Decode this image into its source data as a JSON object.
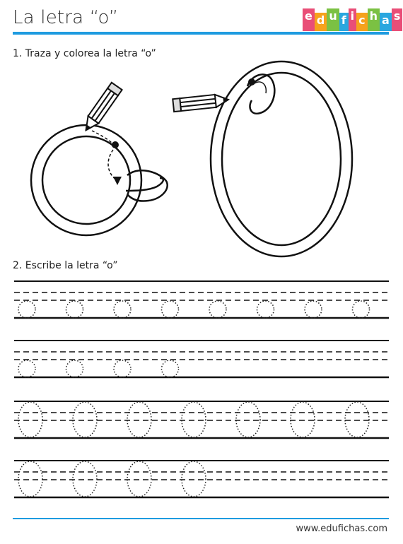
{
  "header": {
    "title": "La letra “o”",
    "accent_color": "#1e9be0",
    "logo": {
      "letters": [
        "e",
        "d",
        "u",
        "f",
        "i",
        "c",
        "h",
        "a",
        "s"
      ],
      "colors": [
        "#e94e77",
        "#f6a21c",
        "#7bc143",
        "#2aa7df",
        "#e94e77",
        "#f6a21c",
        "#7bc143",
        "#2aa7df",
        "#e94e77"
      ]
    }
  },
  "sections": {
    "trace": "1. Traza y colorea la letra “o”",
    "write": "2. Escribe la letra “o”"
  },
  "footer": {
    "url": "www.edufichas.com"
  },
  "practice": {
    "rows": [
      {
        "kind": "small",
        "count": 8
      },
      {
        "kind": "small",
        "count": 4
      },
      {
        "kind": "tall",
        "count": 7
      },
      {
        "kind": "tall",
        "count": 4
      }
    ]
  },
  "icons": [
    "pencil-icon",
    "pencil-icon"
  ]
}
